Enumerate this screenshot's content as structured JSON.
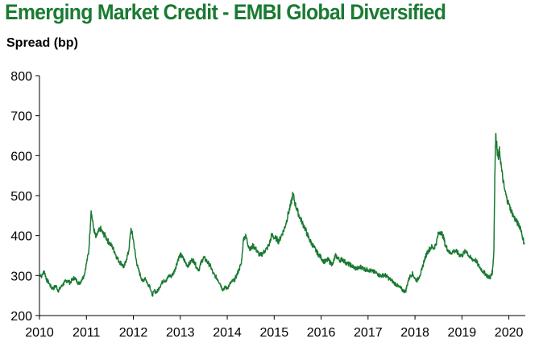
{
  "title": "Emerging Market Credit - EMBI Global Diversified",
  "chart_data": {
    "type": "line",
    "title": "Emerging Market Credit - EMBI Global Diversified",
    "xlabel": "",
    "ylabel": "Spread (bp)",
    "xlim": [
      2010,
      2020.35
    ],
    "ylim": [
      200,
      800
    ],
    "xticks": [
      2010,
      2011,
      2012,
      2013,
      2014,
      2015,
      2016,
      2017,
      2018,
      2019,
      2020
    ],
    "yticks": [
      200,
      300,
      400,
      500,
      600,
      700,
      800
    ],
    "line_color": "#1a7a32",
    "series": [
      {
        "name": "EMBI Global Diversified spread",
        "x": [
          2010.0,
          2010.05,
          2010.1,
          2010.15,
          2010.2,
          2010.25,
          2010.3,
          2010.35,
          2010.4,
          2010.45,
          2010.5,
          2010.55,
          2010.6,
          2010.65,
          2010.7,
          2010.75,
          2010.8,
          2010.85,
          2010.9,
          2010.95,
          2011.0,
          2011.05,
          2011.1,
          2011.15,
          2011.2,
          2011.25,
          2011.3,
          2011.35,
          2011.4,
          2011.45,
          2011.5,
          2011.55,
          2011.6,
          2011.65,
          2011.7,
          2011.75,
          2011.8,
          2011.85,
          2011.9,
          2011.95,
          2012.0,
          2012.05,
          2012.1,
          2012.15,
          2012.2,
          2012.25,
          2012.3,
          2012.35,
          2012.4,
          2012.45,
          2012.5,
          2012.55,
          2012.6,
          2012.65,
          2012.7,
          2012.75,
          2012.8,
          2012.85,
          2012.9,
          2012.95,
          2013.0,
          2013.05,
          2013.1,
          2013.15,
          2013.2,
          2013.25,
          2013.3,
          2013.35,
          2013.4,
          2013.45,
          2013.5,
          2013.55,
          2013.6,
          2013.65,
          2013.7,
          2013.75,
          2013.8,
          2013.85,
          2013.9,
          2013.95,
          2014.0,
          2014.05,
          2014.1,
          2014.15,
          2014.2,
          2014.25,
          2014.3,
          2014.35,
          2014.4,
          2014.45,
          2014.5,
          2014.55,
          2014.6,
          2014.65,
          2014.7,
          2014.75,
          2014.8,
          2014.85,
          2014.9,
          2014.95,
          2015.0,
          2015.05,
          2015.1,
          2015.15,
          2015.2,
          2015.25,
          2015.3,
          2015.35,
          2015.4,
          2015.45,
          2015.5,
          2015.55,
          2015.6,
          2015.65,
          2015.7,
          2015.75,
          2015.8,
          2015.85,
          2015.9,
          2015.95,
          2016.0,
          2016.05,
          2016.1,
          2016.15,
          2016.2,
          2016.25,
          2016.3,
          2016.35,
          2016.4,
          2016.45,
          2016.5,
          2016.55,
          2016.6,
          2016.65,
          2016.7,
          2016.75,
          2016.8,
          2016.85,
          2016.9,
          2016.95,
          2017.0,
          2017.05,
          2017.1,
          2017.15,
          2017.2,
          2017.25,
          2017.3,
          2017.35,
          2017.4,
          2017.45,
          2017.5,
          2017.55,
          2017.6,
          2017.65,
          2017.7,
          2017.75,
          2017.8,
          2017.85,
          2017.9,
          2017.95,
          2018.0,
          2018.05,
          2018.1,
          2018.15,
          2018.2,
          2018.25,
          2018.3,
          2018.35,
          2018.4,
          2018.45,
          2018.5,
          2018.55,
          2018.6,
          2018.65,
          2018.7,
          2018.75,
          2018.8,
          2018.85,
          2018.9,
          2018.95,
          2019.0,
          2019.05,
          2019.1,
          2019.15,
          2019.2,
          2019.25,
          2019.3,
          2019.35,
          2019.4,
          2019.45,
          2019.5,
          2019.55,
          2019.6,
          2019.62,
          2019.65,
          2019.68,
          2019.7,
          2019.72,
          2019.75,
          2019.78,
          2019.8,
          2019.85,
          2019.9,
          2019.95,
          2020.0,
          2020.05,
          2020.1,
          2020.15,
          2020.2,
          2020.25,
          2020.3,
          2020.33
        ],
        "y": [
          305,
          298,
          312,
          290,
          282,
          270,
          268,
          275,
          262,
          270,
          278,
          285,
          288,
          282,
          290,
          295,
          285,
          280,
          290,
          300,
          330,
          360,
          462,
          420,
          395,
          408,
          418,
          405,
          400,
          388,
          380,
          372,
          360,
          345,
          335,
          330,
          320,
          340,
          360,
          418,
          390,
          345,
          318,
          300,
          285,
          295,
          280,
          275,
          250,
          262,
          258,
          270,
          280,
          290,
          285,
          300,
          298,
          305,
          320,
          340,
          352,
          345,
          335,
          325,
          330,
          340,
          335,
          320,
          315,
          335,
          345,
          338,
          330,
          322,
          305,
          298,
          290,
          280,
          265,
          270,
          268,
          278,
          285,
          288,
          300,
          315,
          330,
          395,
          398,
          375,
          365,
          375,
          368,
          358,
          350,
          355,
          362,
          368,
          380,
          402,
          395,
          392,
          385,
          400,
          412,
          430,
          455,
          475,
          505,
          478,
          460,
          445,
          432,
          420,
          405,
          390,
          380,
          370,
          360,
          352,
          345,
          336,
          335,
          340,
          332,
          328,
          350,
          345,
          338,
          342,
          335,
          330,
          328,
          325,
          320,
          318,
          318,
          322,
          318,
          315,
          315,
          312,
          310,
          308,
          305,
          300,
          300,
          302,
          298,
          292,
          288,
          282,
          278,
          272,
          268,
          262,
          260,
          285,
          300,
          305,
          292,
          288,
          300,
          315,
          340,
          355,
          365,
          372,
          368,
          380,
          405,
          410,
          398,
          375,
          365,
          355,
          360,
          362,
          358,
          352,
          350,
          358,
          362,
          348,
          342,
          340,
          338,
          325,
          318,
          310,
          305,
          298,
          295,
          300,
          310,
          360,
          545,
          655,
          615,
          590,
          615,
          560,
          520,
          495,
          478,
          462,
          448,
          438,
          428,
          420,
          392,
          380
        ]
      }
    ]
  },
  "axis": {
    "y_label": "Spread (bp)"
  }
}
